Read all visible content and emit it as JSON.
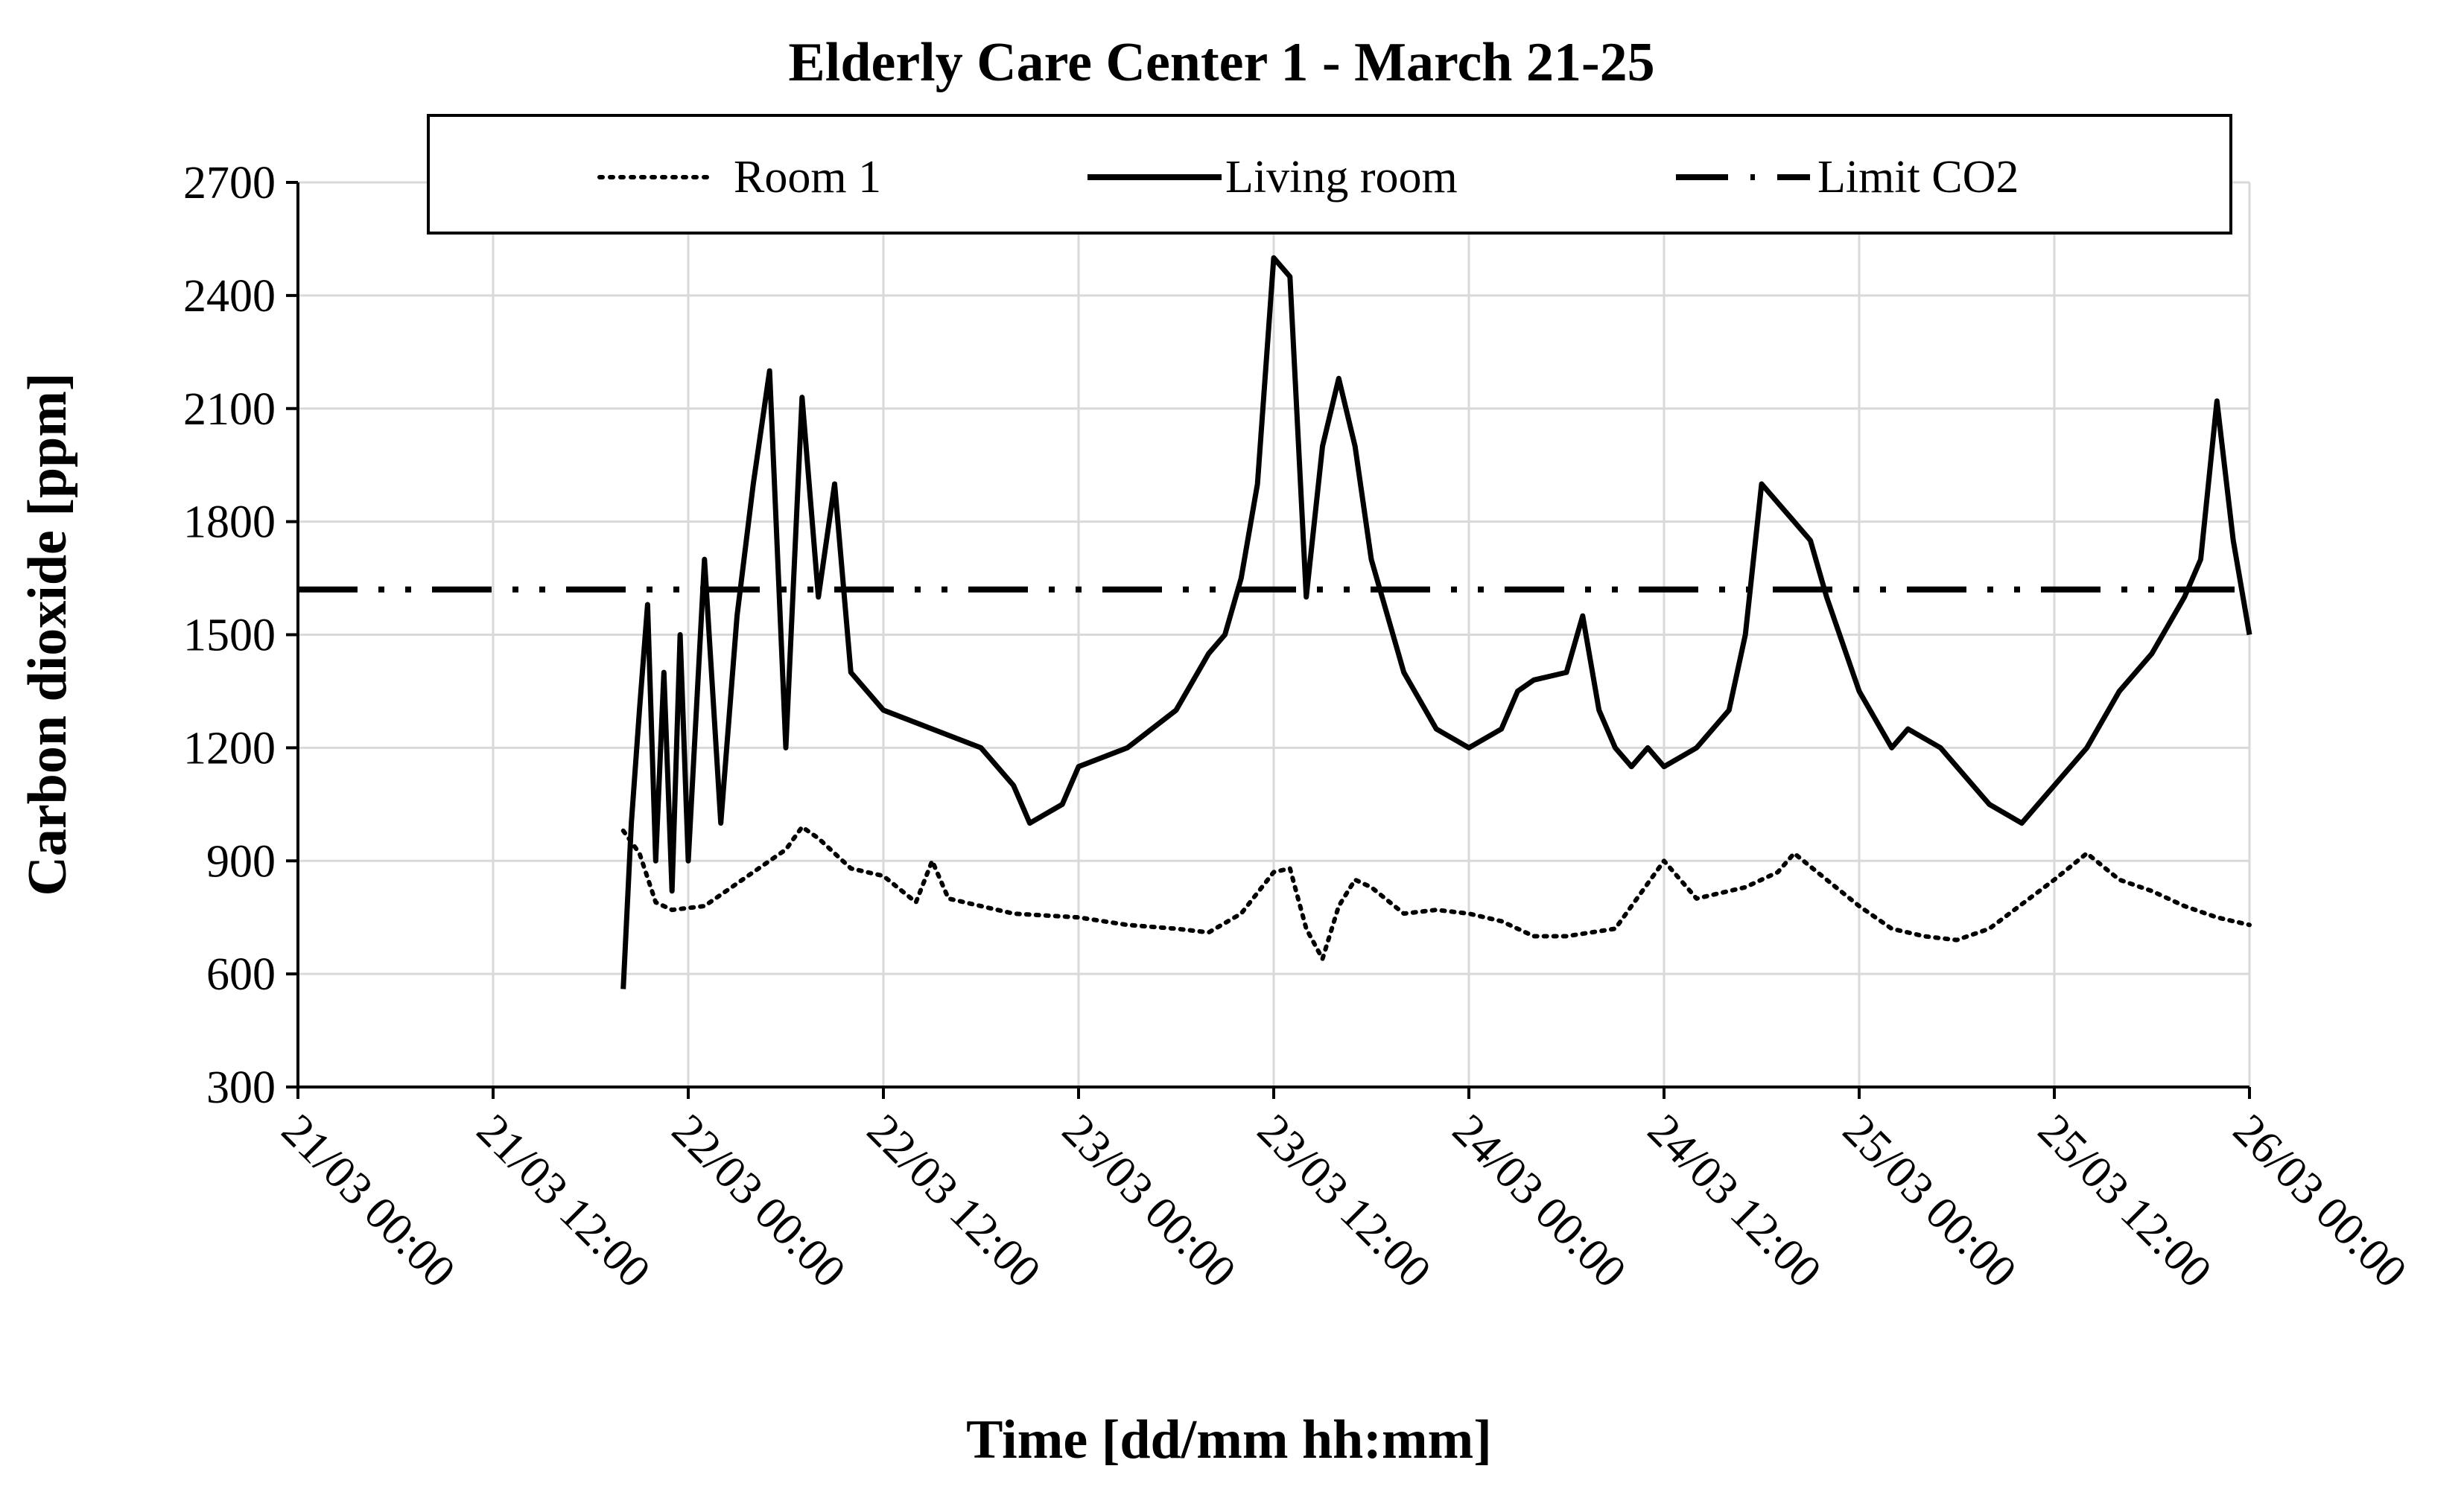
{
  "chart_data": {
    "type": "line",
    "title": "Elderly  Care Center 1 - March 21-25",
    "xlabel": "Time  [dd/mm hh:mm]",
    "ylabel": "Carbon dioxide [ppm]",
    "ylim": [
      300,
      2700
    ],
    "yticks": [
      "300",
      "600",
      "900",
      "1200",
      "1500",
      "1800",
      "2100",
      "2400",
      "2700"
    ],
    "xlim": [
      "2023-03-21 00:00",
      "2023-03-26 00:00"
    ],
    "xtick_labels": [
      "21/03 00:00",
      "21/03 12:00",
      "22/03 00:00",
      "22/03 12:00",
      "23/03 00:00",
      "23/03 12:00",
      "24/03 00:00",
      "24/03 12:00",
      "25/03 00:00",
      "25/03 12:00",
      "26/03 00:00"
    ],
    "grid": true,
    "legend_position": "top",
    "series": [
      {
        "name": "Room 1",
        "style": "dotted",
        "color": "#000000",
        "points": [
          [
            "21/03 20:00",
            980
          ],
          [
            "21/03 21:00",
            920
          ],
          [
            "21/03 22:00",
            790
          ],
          [
            "21/03 23:00",
            770
          ],
          [
            "22/03 01:00",
            780
          ],
          [
            "22/03 03:00",
            840
          ],
          [
            "22/03 06:00",
            930
          ],
          [
            "22/03 07:00",
            990
          ],
          [
            "22/03 08:00",
            960
          ],
          [
            "22/03 10:00",
            880
          ],
          [
            "22/03 12:00",
            860
          ],
          [
            "22/03 14:00",
            790
          ],
          [
            "22/03 15:00",
            900
          ],
          [
            "22/03 16:00",
            800
          ],
          [
            "22/03 18:00",
            780
          ],
          [
            "22/03 20:00",
            760
          ],
          [
            "23/03 00:00",
            750
          ],
          [
            "23/03 03:00",
            730
          ],
          [
            "23/03 06:00",
            720
          ],
          [
            "23/03 08:00",
            710
          ],
          [
            "23/03 10:00",
            760
          ],
          [
            "23/03 12:00",
            870
          ],
          [
            "23/03 13:00",
            880
          ],
          [
            "23/03 14:00",
            720
          ],
          [
            "23/03 15:00",
            640
          ],
          [
            "23/03 16:00",
            780
          ],
          [
            "23/03 17:00",
            850
          ],
          [
            "23/03 18:00",
            830
          ],
          [
            "23/03 20:00",
            760
          ],
          [
            "23/03 22:00",
            770
          ],
          [
            "24/03 00:00",
            760
          ],
          [
            "24/03 02:00",
            740
          ],
          [
            "24/03 04:00",
            700
          ],
          [
            "24/03 06:00",
            700
          ],
          [
            "24/03 09:00",
            720
          ],
          [
            "24/03 12:00",
            900
          ],
          [
            "24/03 14:00",
            800
          ],
          [
            "24/03 17:00",
            830
          ],
          [
            "24/03 19:00",
            870
          ],
          [
            "24/03 20:00",
            920
          ],
          [
            "24/03 22:00",
            850
          ],
          [
            "25/03 00:00",
            780
          ],
          [
            "25/03 02:00",
            720
          ],
          [
            "25/03 04:00",
            700
          ],
          [
            "25/03 06:00",
            690
          ],
          [
            "25/03 08:00",
            720
          ],
          [
            "25/03 12:00",
            850
          ],
          [
            "25/03 14:00",
            920
          ],
          [
            "25/03 16:00",
            850
          ],
          [
            "25/03 18:00",
            820
          ],
          [
            "25/03 20:00",
            780
          ],
          [
            "25/03 22:00",
            750
          ],
          [
            "26/03 00:00",
            730
          ]
        ]
      },
      {
        "name": "Living room",
        "style": "solid",
        "color": "#000000",
        "points": [
          [
            "21/03 20:00",
            560
          ],
          [
            "21/03 20:30",
            1000
          ],
          [
            "21/03 21:00",
            1300
          ],
          [
            "21/03 21:30",
            1580
          ],
          [
            "21/03 22:00",
            900
          ],
          [
            "21/03 22:30",
            1400
          ],
          [
            "21/03 23:00",
            820
          ],
          [
            "21/03 23:30",
            1500
          ],
          [
            "22/03 00:00",
            900
          ],
          [
            "22/03 01:00",
            1700
          ],
          [
            "22/03 02:00",
            1000
          ],
          [
            "22/03 03:00",
            1550
          ],
          [
            "22/03 04:00",
            1900
          ],
          [
            "22/03 05:00",
            2200
          ],
          [
            "22/03 06:00",
            1200
          ],
          [
            "22/03 07:00",
            2130
          ],
          [
            "22/03 08:00",
            1600
          ],
          [
            "22/03 09:00",
            1900
          ],
          [
            "22/03 10:00",
            1400
          ],
          [
            "22/03 12:00",
            1300
          ],
          [
            "22/03 15:00",
            1250
          ],
          [
            "22/03 18:00",
            1200
          ],
          [
            "22/03 20:00",
            1100
          ],
          [
            "22/03 21:00",
            1000
          ],
          [
            "22/03 23:00",
            1050
          ],
          [
            "23/03 00:00",
            1150
          ],
          [
            "23/03 03:00",
            1200
          ],
          [
            "23/03 06:00",
            1300
          ],
          [
            "23/03 08:00",
            1450
          ],
          [
            "23/03 09:00",
            1500
          ],
          [
            "23/03 10:00",
            1650
          ],
          [
            "23/03 11:00",
            1900
          ],
          [
            "23/03 12:00",
            2500
          ],
          [
            "23/03 13:00",
            2450
          ],
          [
            "23/03 14:00",
            1600
          ],
          [
            "23/03 15:00",
            2000
          ],
          [
            "23/03 16:00",
            2180
          ],
          [
            "23/03 17:00",
            2000
          ],
          [
            "23/03 18:00",
            1700
          ],
          [
            "23/03 20:00",
            1400
          ],
          [
            "23/03 22:00",
            1250
          ],
          [
            "24/03 00:00",
            1200
          ],
          [
            "24/03 02:00",
            1250
          ],
          [
            "24/03 03:00",
            1350
          ],
          [
            "24/03 04:00",
            1380
          ],
          [
            "24/03 06:00",
            1400
          ],
          [
            "24/03 07:00",
            1550
          ],
          [
            "24/03 08:00",
            1300
          ],
          [
            "24/03 09:00",
            1200
          ],
          [
            "24/03 10:00",
            1150
          ],
          [
            "24/03 11:00",
            1200
          ],
          [
            "24/03 12:00",
            1150
          ],
          [
            "24/03 14:00",
            1200
          ],
          [
            "24/03 16:00",
            1300
          ],
          [
            "24/03 17:00",
            1500
          ],
          [
            "24/03 18:00",
            1900
          ],
          [
            "24/03 19:00",
            1850
          ],
          [
            "24/03 20:00",
            1800
          ],
          [
            "24/03 21:00",
            1750
          ],
          [
            "24/03 22:00",
            1600
          ],
          [
            "25/03 00:00",
            1350
          ],
          [
            "25/03 02:00",
            1200
          ],
          [
            "25/03 03:00",
            1250
          ],
          [
            "25/03 05:00",
            1200
          ],
          [
            "25/03 06:00",
            1150
          ],
          [
            "25/03 08:00",
            1050
          ],
          [
            "25/03 10:00",
            1000
          ],
          [
            "25/03 12:00",
            1100
          ],
          [
            "25/03 14:00",
            1200
          ],
          [
            "25/03 16:00",
            1350
          ],
          [
            "25/03 18:00",
            1450
          ],
          [
            "25/03 20:00",
            1600
          ],
          [
            "25/03 21:00",
            1700
          ],
          [
            "25/03 22:00",
            2120
          ],
          [
            "25/03 23:00",
            1750
          ],
          [
            "26/03 00:00",
            1500
          ]
        ]
      },
      {
        "name": "Limit CO2",
        "style": "dash-dot-dot",
        "color": "#000000",
        "points": [
          [
            "21/03 00:00",
            1620
          ],
          [
            "26/03 00:00",
            1620
          ]
        ]
      }
    ]
  }
}
